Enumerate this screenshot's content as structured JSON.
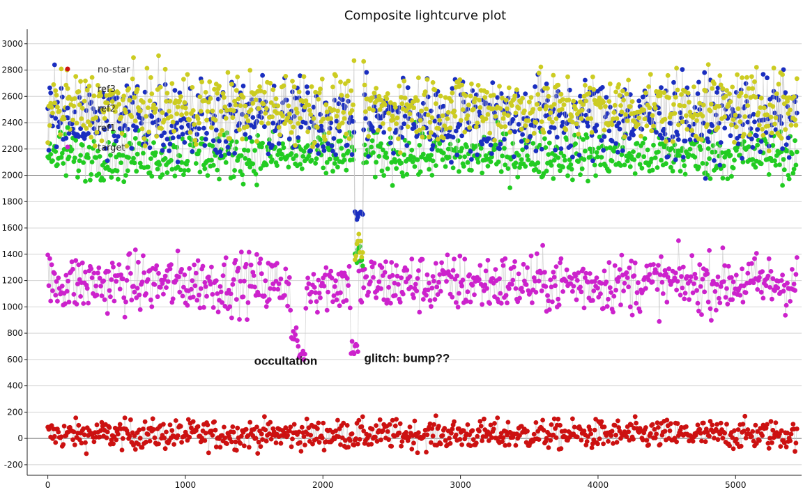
{
  "chart_data": {
    "type": "scatter",
    "title": "Composite lightcurve plot",
    "xlim": [
      -150,
      5480
    ],
    "ylim": [
      -280,
      3110
    ],
    "x_ticks": [
      0,
      1000,
      2000,
      3000,
      4000,
      5000
    ],
    "y_ticks": [
      -200,
      0,
      200,
      400,
      600,
      800,
      1000,
      1200,
      1400,
      1600,
      1800,
      2000,
      2200,
      2400,
      2600,
      2800,
      3000
    ],
    "reference_lines": [
      0,
      2000
    ],
    "grid": "horizontal",
    "legend_position": "top-left",
    "point_count": 5450,
    "series": [
      {
        "name": "no-star",
        "color": "#cc1111",
        "level": 30,
        "noise": 55,
        "features": []
      },
      {
        "name": "ref3",
        "color": "#cccc22",
        "level": 2520,
        "noise": 130,
        "features": [
          {
            "x": 2260,
            "value": 1450
          }
        ]
      },
      {
        "name": "ref2",
        "color": "#1a2ec0",
        "level": 2430,
        "noise": 150,
        "features": [
          {
            "x": 2260,
            "value": 1720
          }
        ]
      },
      {
        "name": "ref1",
        "color": "#22cc22",
        "level": 2150,
        "noise": 90,
        "features": [
          {
            "x": 2260,
            "value": 1380
          }
        ]
      },
      {
        "name": "target",
        "color": "#cc22cc",
        "level": 1180,
        "noise": 110,
        "features": [
          {
            "x": 1800,
            "value": 770
          },
          {
            "x": 1845,
            "value": 610
          },
          {
            "x": 2230,
            "value": 680
          }
        ]
      }
    ],
    "annotations": [
      {
        "text": "occultation",
        "x": 1500,
        "y": 560
      },
      {
        "text": "glitch: bump??",
        "x": 2300,
        "y": 580
      }
    ]
  }
}
